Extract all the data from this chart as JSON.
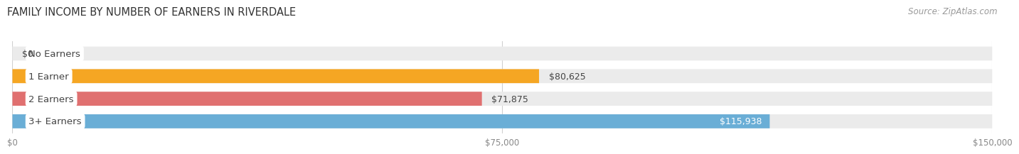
{
  "title": "FAMILY INCOME BY NUMBER OF EARNERS IN RIVERDALE",
  "source": "Source: ZipAtlas.com",
  "categories": [
    "No Earners",
    "1 Earner",
    "2 Earners",
    "3+ Earners"
  ],
  "values": [
    0,
    80625,
    71875,
    115938
  ],
  "bar_colors": [
    "#f48fb1",
    "#f5a623",
    "#e07070",
    "#6aaed6"
  ],
  "bar_bg_color": "#ebebeb",
  "value_labels": [
    "$0",
    "$80,625",
    "$71,875",
    "$115,938"
  ],
  "label_inside": [
    false,
    false,
    false,
    true
  ],
  "xlim": [
    0,
    150000
  ],
  "xticks": [
    0,
    75000,
    150000
  ],
  "xtick_labels": [
    "$0",
    "$75,000",
    "$150,000"
  ],
  "background_color": "#ffffff",
  "bar_height": 0.62,
  "title_fontsize": 10.5,
  "cat_fontsize": 9.5,
  "val_fontsize": 9,
  "tick_fontsize": 8.5,
  "source_fontsize": 8.5,
  "grid_color": "#d0d0d0",
  "text_color": "#444444",
  "tick_color": "#888888",
  "val_inside_color": "#ffffff",
  "source_color": "#999999"
}
